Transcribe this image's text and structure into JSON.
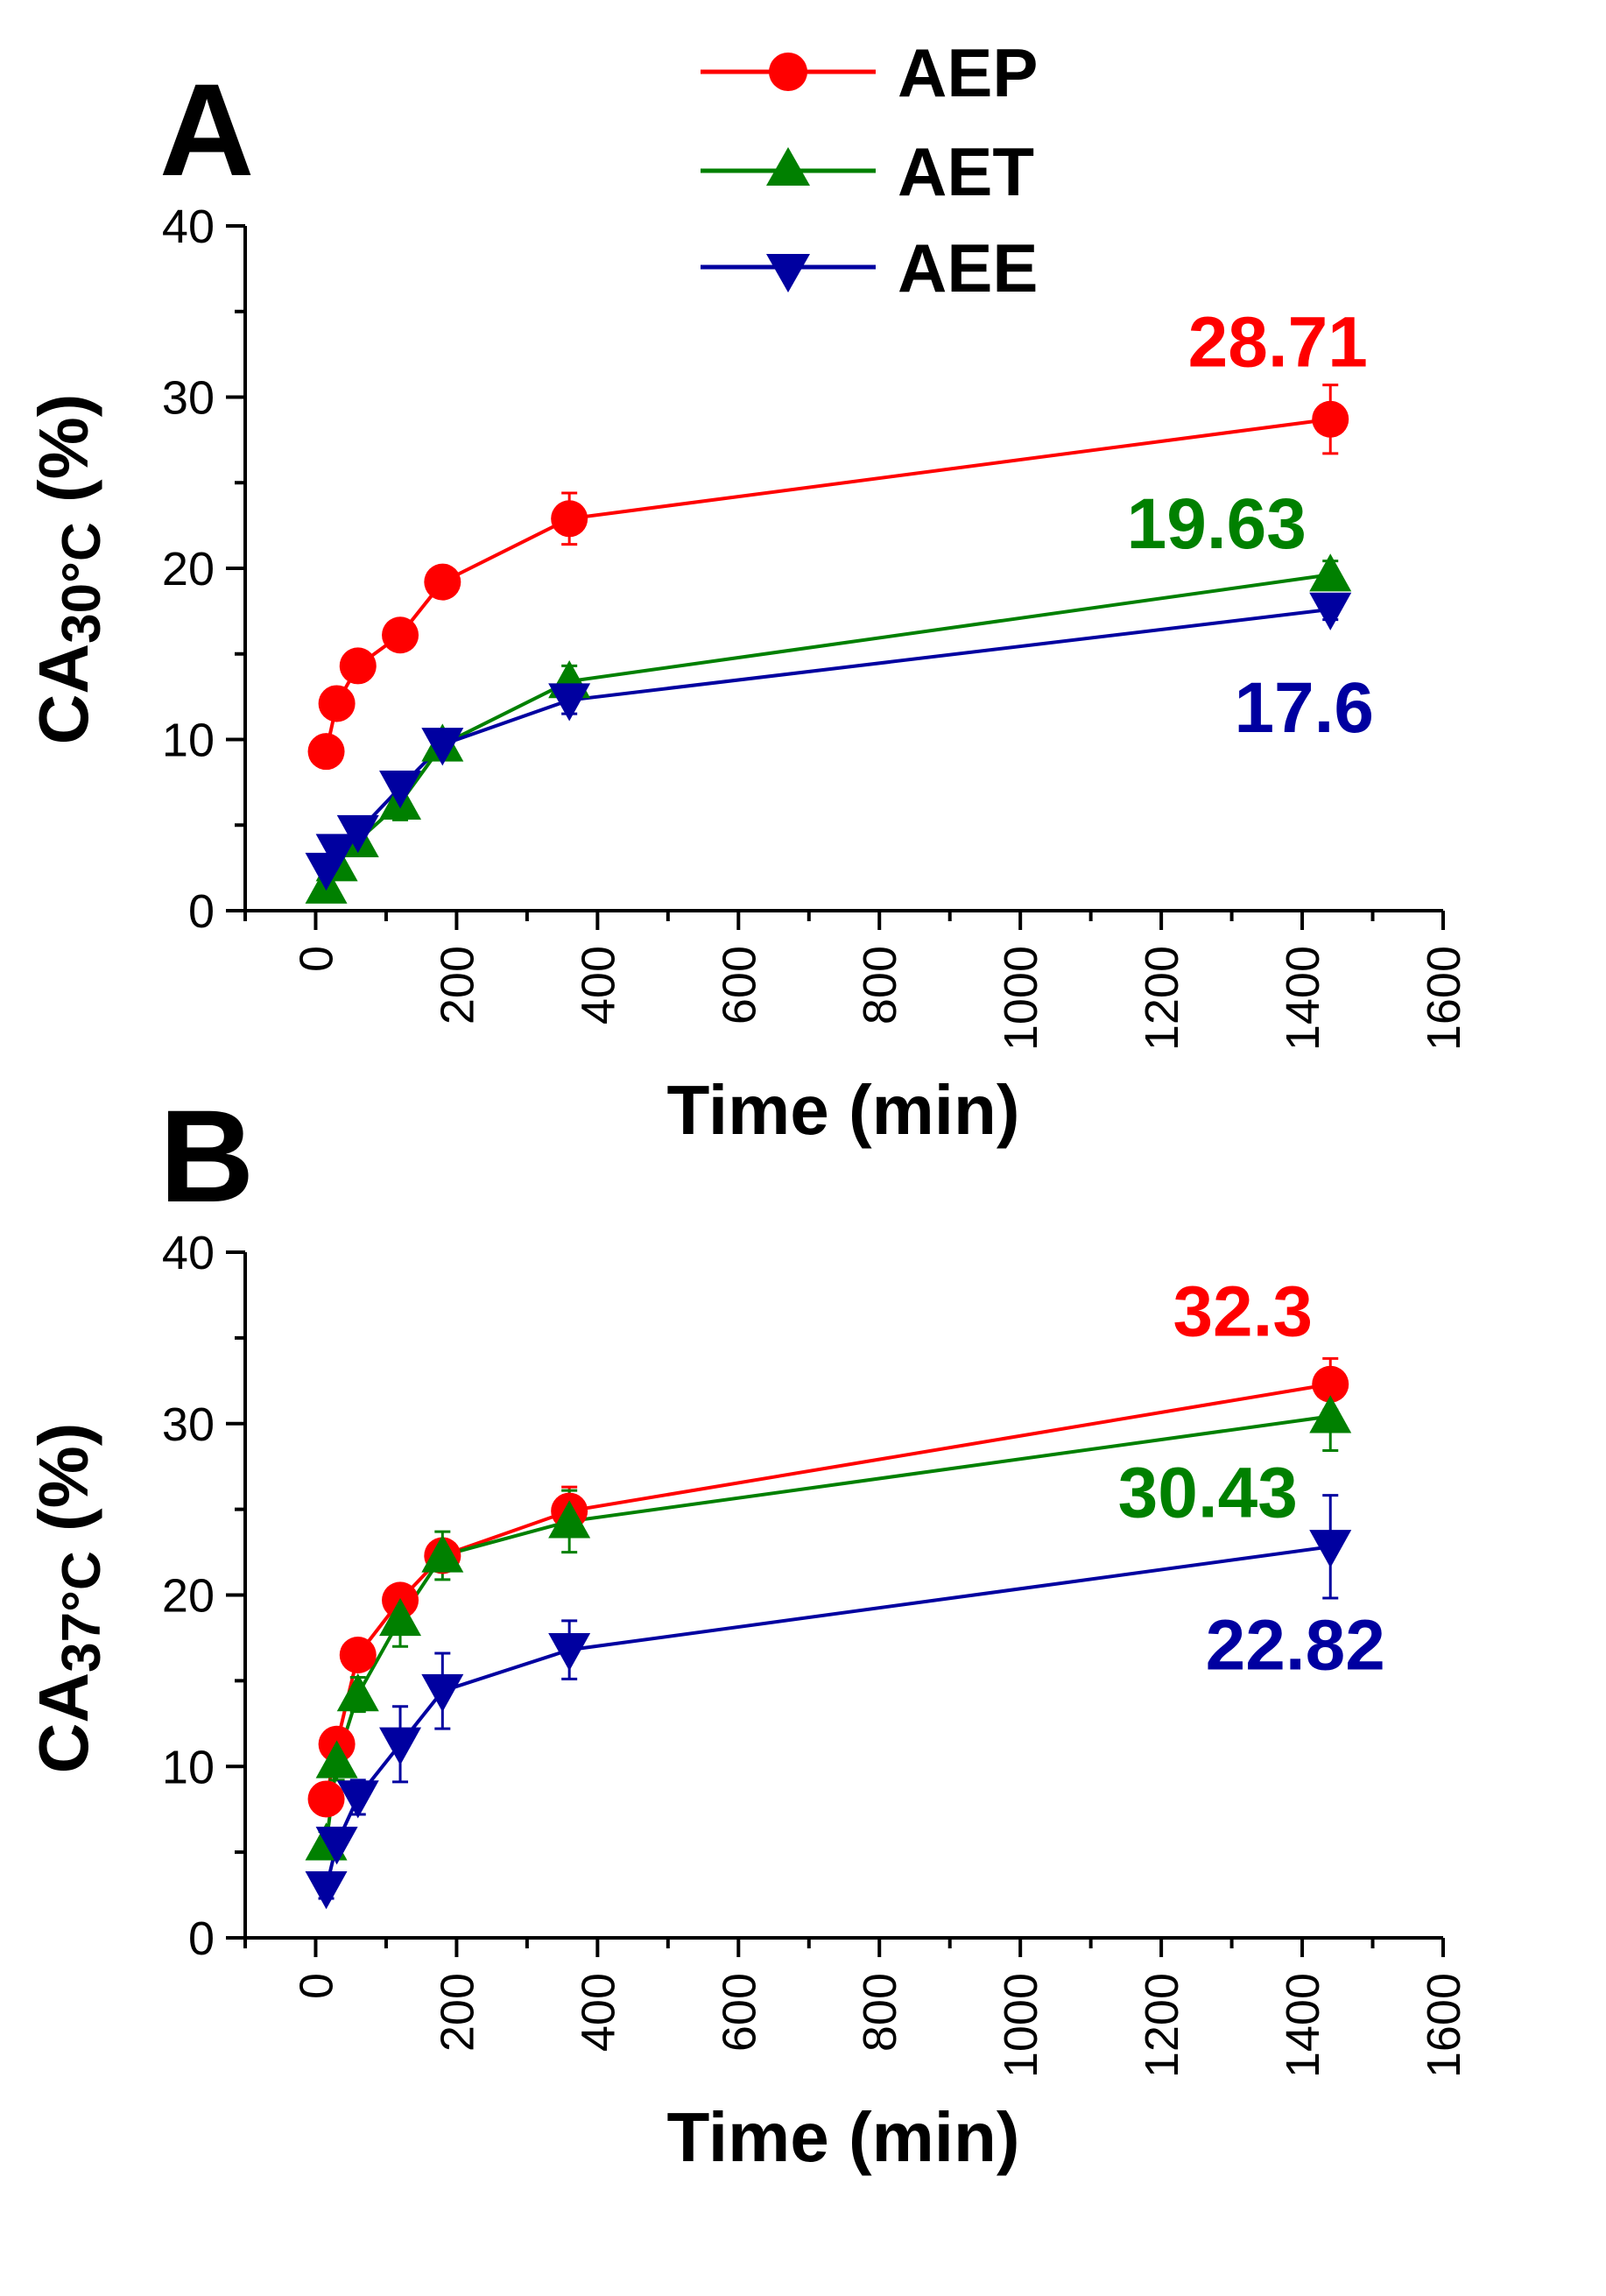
{
  "chart_data": {
    "type": "line",
    "legend": {
      "placement": "top-center",
      "entries": [
        {
          "name": "AEP",
          "color": "#ff0000",
          "marker": "circle"
        },
        {
          "name": "AET",
          "color": "#008000",
          "marker": "triangle-up"
        },
        {
          "name": "AEE",
          "color": "#0000a0",
          "marker": "triangle-down"
        }
      ]
    },
    "panels": [
      {
        "letter": "A",
        "ylabel_main": "CA",
        "ylabel_sub": "30°C",
        "ylabel_tail": " (%)",
        "xlabel": "Time (min)",
        "xlim": [
          -100,
          1600
        ],
        "ylim": [
          0,
          40
        ],
        "xticks": [
          0,
          200,
          400,
          600,
          800,
          1000,
          1200,
          1400,
          1600
        ],
        "xtick_labels": [
          "0",
          "200",
          "400",
          "600",
          "800",
          "1000",
          "1200",
          "1400",
          "1600"
        ],
        "yticks": [
          0,
          10,
          20,
          30,
          40
        ],
        "ytick_labels": [
          "0",
          "10",
          "20",
          "30",
          "40"
        ],
        "x": [
          15,
          30,
          60,
          120,
          180,
          360,
          1440
        ],
        "series": [
          {
            "name": "AEP",
            "values": [
              9.3,
              12.1,
              14.3,
              16.1,
              19.2,
              22.9,
              28.71
            ],
            "errors": [
              0.4,
              0.6,
              0.7,
              0.8,
              0.6,
              1.5,
              2.0
            ]
          },
          {
            "name": "AET",
            "values": [
              1.4,
              2.7,
              4.1,
              6.3,
              9.7,
              13.4,
              19.63
            ],
            "errors": [
              0.5,
              0.8,
              0.6,
              1.0,
              0.7,
              0.9,
              0.8
            ]
          },
          {
            "name": "AEE",
            "values": [
              2.4,
              3.5,
              4.6,
              7.2,
              9.7,
              12.3,
              17.6
            ],
            "errors": [
              0.4,
              0.7,
              0.6,
              0.9,
              0.5,
              0.8,
              0.6
            ]
          }
        ],
        "annotations": [
          {
            "series": "AEP",
            "text": "28.71",
            "color": "#ff0000"
          },
          {
            "series": "AET",
            "text": "19.63",
            "color": "#008000"
          },
          {
            "series": "AEE",
            "text": "17.6",
            "color": "#0000a0"
          }
        ]
      },
      {
        "letter": "B",
        "ylabel_main": "CA",
        "ylabel_sub": "37°C",
        "ylabel_tail": " (%)",
        "xlabel": "Time (min)",
        "xlim": [
          -100,
          1600
        ],
        "ylim": [
          0,
          40
        ],
        "xticks": [
          0,
          200,
          400,
          600,
          800,
          1000,
          1200,
          1400,
          1600
        ],
        "xtick_labels": [
          "0",
          "200",
          "400",
          "600",
          "800",
          "1000",
          "1200",
          "1400",
          "1600"
        ],
        "yticks": [
          0,
          10,
          20,
          30,
          40
        ],
        "ytick_labels": [
          "0",
          "10",
          "20",
          "30",
          "40"
        ],
        "x": [
          15,
          30,
          60,
          120,
          180,
          360,
          1440
        ],
        "series": [
          {
            "name": "AEP",
            "values": [
              8.1,
              11.3,
              16.5,
              19.7,
              22.3,
              24.9,
              32.3
            ],
            "errors": [
              0.6,
              0.9,
              0.8,
              0.8,
              0.9,
              1.4,
              1.5
            ]
          },
          {
            "name": "AET",
            "values": [
              5.5,
              10.3,
              14.2,
              18.6,
              22.3,
              24.3,
              30.43
            ],
            "errors": [
              0.7,
              1.1,
              1.0,
              1.6,
              1.4,
              1.8,
              2.0
            ]
          },
          {
            "name": "AEE",
            "values": [
              2.9,
              5.5,
              8.2,
              11.3,
              14.4,
              16.8,
              22.82
            ],
            "errors": [
              0.6,
              0.9,
              1.0,
              2.2,
              2.2,
              1.7,
              3.0
            ]
          }
        ],
        "annotations": [
          {
            "series": "AEP",
            "text": "32.3",
            "color": "#ff0000"
          },
          {
            "series": "AET",
            "text": "30.43",
            "color": "#008000"
          },
          {
            "series": "AEE",
            "text": "22.82",
            "color": "#0000a0"
          }
        ]
      }
    ]
  }
}
